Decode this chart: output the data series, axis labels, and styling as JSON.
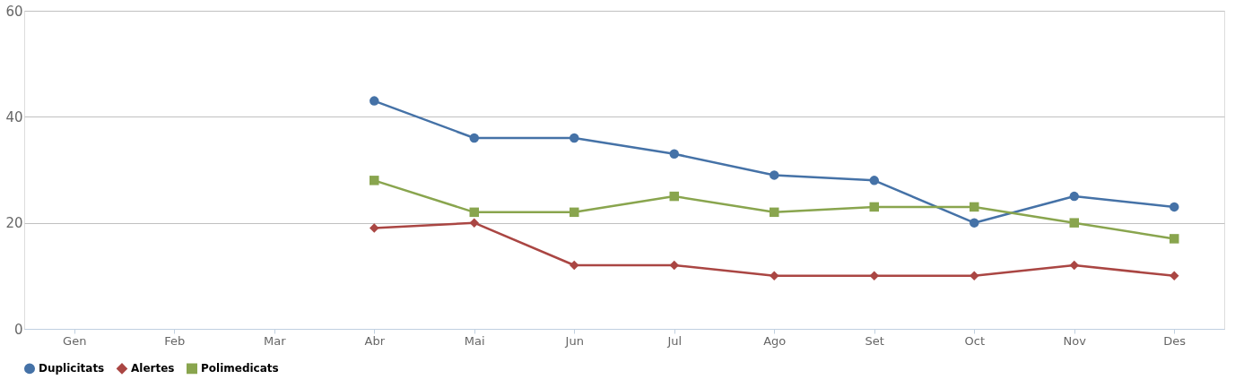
{
  "chart_data": {
    "type": "line",
    "categories": [
      "Gen",
      "Feb",
      "Mar",
      "Abr",
      "Mai",
      "Jun",
      "Jul",
      "Ago",
      "Set",
      "Oct",
      "Nov",
      "Des"
    ],
    "series": [
      {
        "name": "Duplicitats",
        "color": "#4572a7",
        "marker": "circle",
        "values": [
          null,
          null,
          null,
          43,
          36,
          36,
          33,
          29,
          28,
          20,
          25,
          23
        ]
      },
      {
        "name": "Alertes",
        "color": "#aa4643",
        "marker": "diamond",
        "values": [
          null,
          null,
          null,
          19,
          20,
          12,
          12,
          10,
          10,
          10,
          12,
          10
        ]
      },
      {
        "name": "Polimedicats",
        "color": "#89a54e",
        "marker": "square",
        "values": [
          null,
          null,
          null,
          28,
          22,
          22,
          25,
          22,
          23,
          23,
          20,
          17
        ]
      }
    ],
    "ylim": [
      0,
      60
    ],
    "yticks": [
      0,
      20,
      40,
      60
    ],
    "grid": "y",
    "legend": "bottom",
    "line_style": "solid"
  }
}
